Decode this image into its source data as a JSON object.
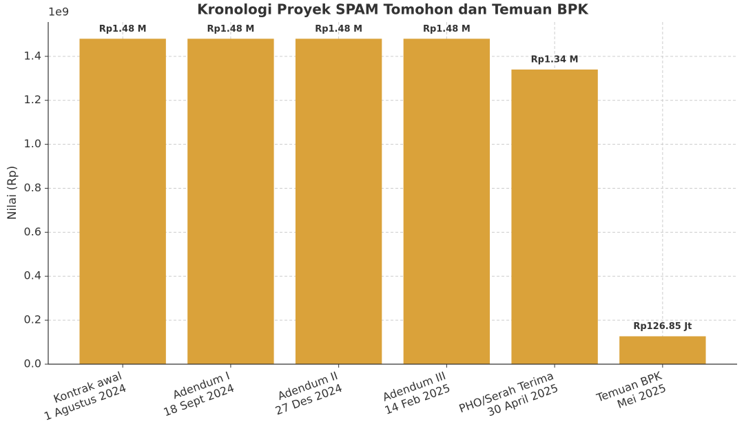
{
  "chart_data": {
    "type": "bar",
    "title": "Kronologi Proyek SPAM Tomohon dan Temuan BPK",
    "ylabel": "Nilai (Rp)",
    "y_offset_label": "1e9",
    "categories": [
      "Kontrak awal\n1 Agustus 2024",
      "Adendum I\n18 Sept 2024",
      "Adendum II\n27 Des 2024",
      "Adendum III\n14 Feb 2025",
      "PHO/Serah Terima\n30 April 2025",
      "Temuan BPK\nMei 2025"
    ],
    "values": [
      1480000000,
      1480000000,
      1480000000,
      1480000000,
      1340000000,
      126850000
    ],
    "value_labels": [
      "Rp1.48 M",
      "Rp1.48 M",
      "Rp1.48 M",
      "Rp1.48 M",
      "Rp1.34 M",
      "Rp126.85 Jt"
    ],
    "color": "#daa23a",
    "ylim": [
      0,
      1556000000
    ],
    "yticks": [
      {
        "value": 0,
        "label": "0.0"
      },
      {
        "value": 200000000,
        "label": "0.2"
      },
      {
        "value": 400000000,
        "label": "0.4"
      },
      {
        "value": 600000000,
        "label": "0.6"
      },
      {
        "value": 800000000,
        "label": "0.8"
      },
      {
        "value": 1000000000,
        "label": "1.0"
      },
      {
        "value": 1200000000,
        "label": "1.2"
      },
      {
        "value": 1400000000,
        "label": "1.4"
      }
    ],
    "grid": true
  }
}
